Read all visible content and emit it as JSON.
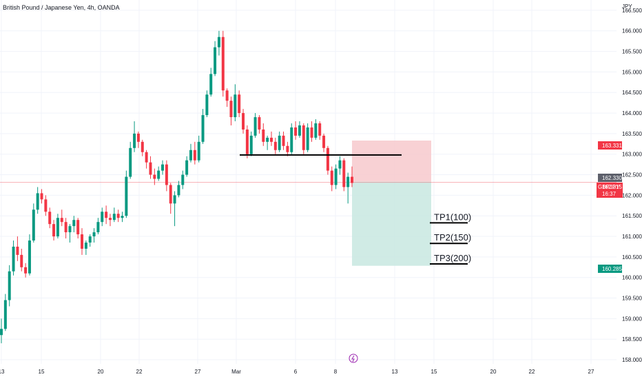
{
  "header": {
    "title": "British Pound / Japanese Yen, 4h, OANDA",
    "currency": "JPY"
  },
  "price_tags": {
    "stop": "163.331",
    "entry": "162.330",
    "symbol": "GBPJPY",
    "last": "162.315",
    "countdown": "16:37",
    "target": "160.285"
  },
  "chart_data": {
    "type": "candlestick",
    "title": "British Pound / Japanese Yen, 4h, OANDA",
    "symbol": "GBPJPY",
    "ylabel": "JPY",
    "ylim": [
      157.9,
      166.75
    ],
    "y_ticks": [
      "166.500",
      "166.000",
      "165.500",
      "165.000",
      "164.500",
      "164.000",
      "163.500",
      "163.000",
      "162.500",
      "162.000",
      "161.500",
      "161.000",
      "160.500",
      "160.000",
      "159.500",
      "159.000",
      "158.500",
      "158.000"
    ],
    "x_ticks": [
      "13",
      "15",
      "20",
      "22",
      "27",
      "Mar",
      "6",
      "8",
      "13",
      "15",
      "20",
      "22",
      "27"
    ],
    "last_price": 162.315,
    "candles": [
      [
        158.6,
        159.0,
        158.4,
        158.75
      ],
      [
        158.75,
        159.6,
        158.7,
        159.45
      ],
      [
        159.45,
        160.3,
        159.3,
        160.15
      ],
      [
        160.15,
        160.9,
        160.05,
        160.75
      ],
      [
        160.75,
        161.0,
        160.4,
        160.55
      ],
      [
        160.55,
        160.7,
        160.15,
        160.25
      ],
      [
        160.25,
        160.35,
        160.0,
        160.1
      ],
      [
        160.1,
        161.05,
        160.05,
        160.9
      ],
      [
        160.9,
        161.8,
        160.85,
        161.65
      ],
      [
        161.65,
        162.2,
        161.55,
        162.05
      ],
      [
        162.05,
        162.15,
        161.8,
        161.9
      ],
      [
        161.9,
        162.0,
        161.5,
        161.6
      ],
      [
        161.6,
        161.7,
        161.2,
        161.3
      ],
      [
        161.3,
        161.4,
        160.9,
        161.0
      ],
      [
        161.0,
        161.55,
        160.95,
        161.45
      ],
      [
        161.45,
        161.65,
        161.25,
        161.35
      ],
      [
        161.35,
        161.45,
        160.95,
        161.1
      ],
      [
        161.1,
        161.3,
        160.85,
        161.25
      ],
      [
        161.25,
        161.5,
        161.1,
        161.4
      ],
      [
        161.4,
        161.45,
        160.95,
        161.05
      ],
      [
        161.05,
        161.2,
        160.55,
        160.7
      ],
      [
        160.7,
        160.9,
        160.55,
        160.85
      ],
      [
        160.85,
        161.05,
        160.75,
        161.0
      ],
      [
        161.0,
        161.2,
        160.85,
        161.1
      ],
      [
        161.1,
        161.45,
        161.05,
        161.35
      ],
      [
        161.35,
        161.7,
        161.25,
        161.6
      ],
      [
        161.6,
        161.75,
        161.3,
        161.45
      ],
      [
        161.45,
        161.55,
        161.25,
        161.4
      ],
      [
        161.4,
        161.7,
        161.35,
        161.55
      ],
      [
        161.55,
        161.65,
        161.35,
        161.45
      ],
      [
        161.45,
        161.6,
        161.35,
        161.5
      ],
      [
        161.5,
        162.6,
        161.45,
        162.45
      ],
      [
        162.45,
        163.3,
        162.4,
        163.15
      ],
      [
        163.15,
        163.8,
        163.05,
        163.5
      ],
      [
        163.5,
        163.55,
        163.15,
        163.3
      ],
      [
        163.3,
        163.35,
        162.95,
        163.05
      ],
      [
        163.05,
        163.1,
        162.65,
        162.8
      ],
      [
        162.8,
        162.95,
        162.4,
        162.5
      ],
      [
        162.5,
        162.65,
        162.25,
        162.4
      ],
      [
        162.4,
        162.7,
        162.35,
        162.6
      ],
      [
        162.6,
        162.85,
        162.5,
        162.75
      ],
      [
        162.75,
        162.85,
        162.1,
        162.25
      ],
      [
        162.25,
        162.3,
        161.55,
        161.8
      ],
      [
        161.8,
        162.1,
        161.25,
        162.0
      ],
      [
        162.0,
        162.35,
        161.95,
        162.25
      ],
      [
        162.25,
        162.6,
        162.15,
        162.5
      ],
      [
        162.5,
        162.95,
        162.45,
        162.85
      ],
      [
        162.85,
        163.25,
        162.8,
        163.1
      ],
      [
        163.1,
        163.3,
        162.75,
        162.85
      ],
      [
        162.85,
        163.45,
        162.8,
        163.3
      ],
      [
        163.3,
        164.1,
        163.25,
        163.95
      ],
      [
        163.95,
        164.55,
        163.9,
        164.45
      ],
      [
        164.45,
        165.1,
        164.4,
        164.95
      ],
      [
        164.95,
        165.75,
        164.9,
        165.6
      ],
      [
        165.6,
        166.0,
        165.4,
        165.85
      ],
      [
        165.85,
        166.0,
        164.4,
        164.55
      ],
      [
        164.55,
        164.6,
        164.15,
        164.3
      ],
      [
        164.3,
        164.4,
        163.7,
        163.9
      ],
      [
        163.9,
        164.7,
        163.8,
        164.45
      ],
      [
        164.45,
        164.55,
        163.9,
        164.0
      ],
      [
        164.0,
        164.1,
        163.5,
        163.6
      ],
      [
        163.6,
        163.7,
        162.9,
        163.0
      ],
      [
        163.0,
        163.55,
        162.95,
        163.45
      ],
      [
        163.45,
        164.0,
        163.4,
        163.9
      ],
      [
        163.9,
        163.95,
        163.5,
        163.6
      ],
      [
        163.6,
        163.75,
        163.2,
        163.3
      ],
      [
        163.3,
        163.45,
        163.1,
        163.4
      ],
      [
        163.4,
        163.55,
        163.2,
        163.3
      ],
      [
        163.3,
        163.4,
        163.0,
        163.1
      ],
      [
        163.1,
        163.55,
        163.05,
        163.45
      ],
      [
        163.45,
        163.55,
        163.1,
        163.2
      ],
      [
        163.2,
        163.3,
        162.95,
        163.05
      ],
      [
        163.05,
        163.75,
        163.0,
        163.65
      ],
      [
        163.65,
        163.8,
        163.35,
        163.45
      ],
      [
        163.45,
        163.8,
        163.4,
        163.7
      ],
      [
        163.7,
        163.75,
        163.0,
        163.1
      ],
      [
        163.1,
        163.75,
        163.05,
        163.65
      ],
      [
        163.65,
        163.8,
        163.3,
        163.4
      ],
      [
        163.4,
        163.85,
        163.35,
        163.75
      ],
      [
        163.75,
        163.8,
        163.35,
        163.45
      ],
      [
        163.45,
        163.5,
        163.05,
        163.15
      ],
      [
        163.15,
        163.2,
        162.5,
        162.6
      ],
      [
        162.6,
        162.7,
        162.1,
        162.25
      ],
      [
        162.25,
        162.75,
        162.15,
        162.65
      ],
      [
        162.65,
        162.95,
        162.5,
        162.85
      ],
      [
        162.85,
        162.9,
        162.1,
        162.2
      ],
      [
        162.2,
        162.55,
        161.8,
        162.45
      ],
      [
        162.45,
        162.7,
        162.2,
        162.3
      ]
    ],
    "horizontal_line": 162.98,
    "position": {
      "entry": 162.33,
      "stop": 163.331,
      "target": 160.285
    },
    "take_profits": [
      {
        "label": "TP1(100)",
        "price": 161.33
      },
      {
        "label": "TP2(150)",
        "price": 160.83
      },
      {
        "label": "TP3(200)",
        "price": 160.33
      }
    ],
    "colors": {
      "up": "#089981",
      "down": "#f23645",
      "stop_zone": "#f7c9cd",
      "target_zone": "#c8e8e0",
      "grid": "#f0f3fa"
    }
  }
}
